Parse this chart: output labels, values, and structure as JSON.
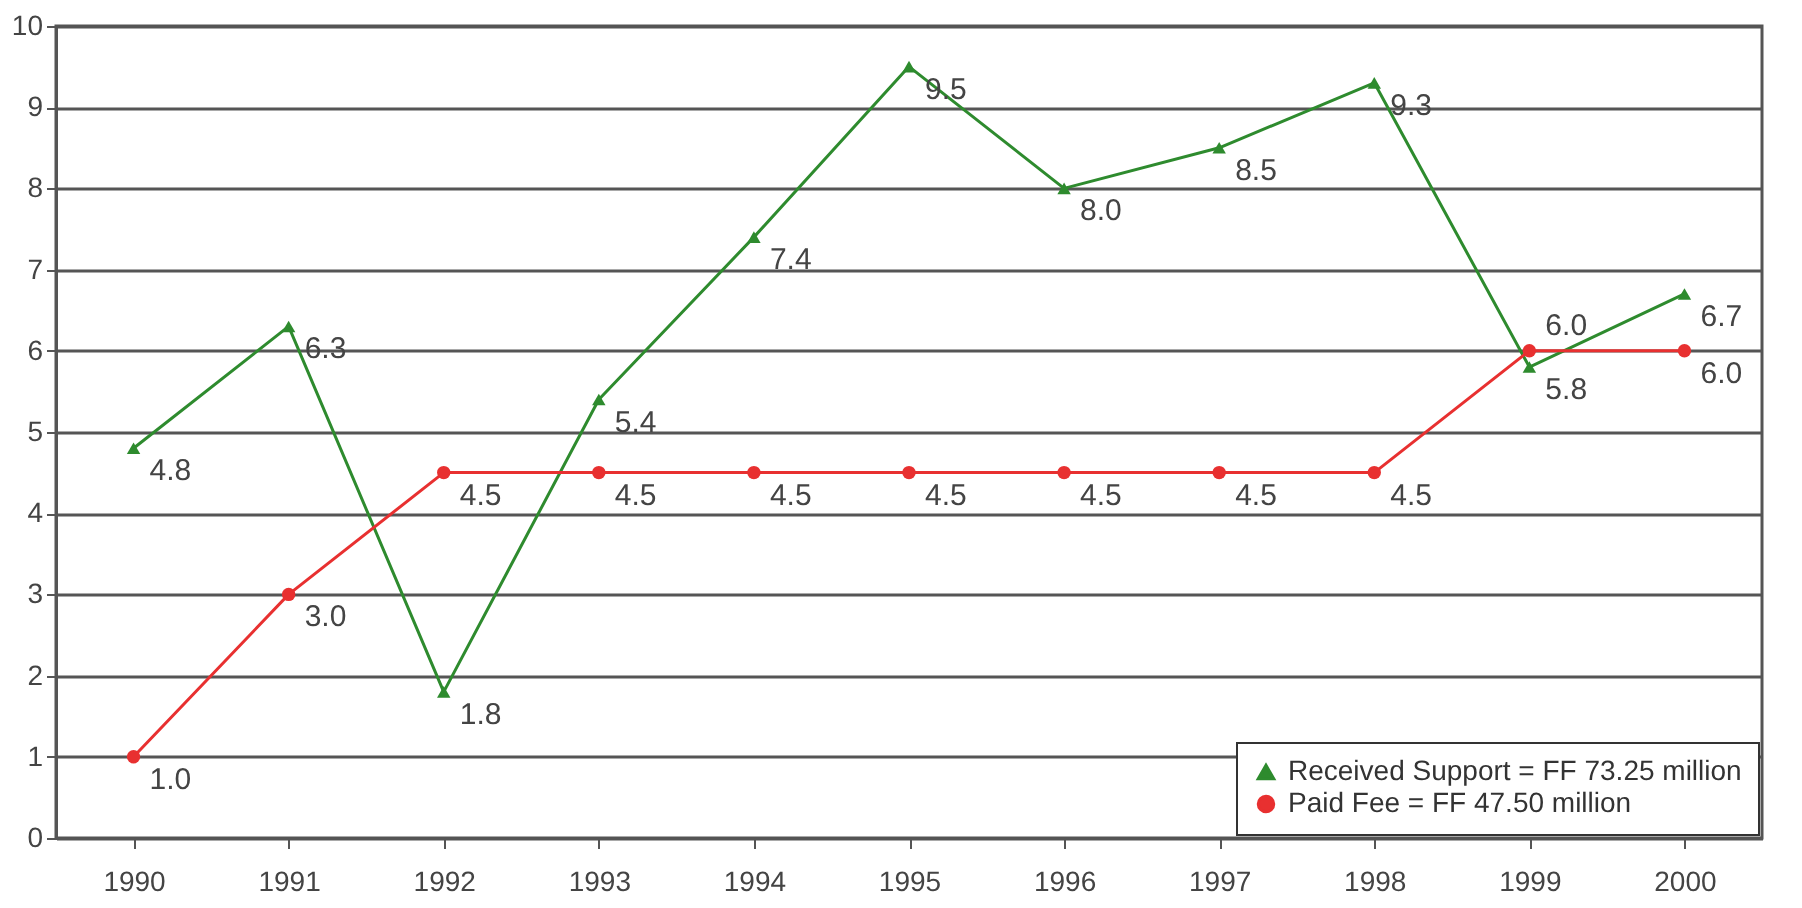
{
  "chart_data": {
    "type": "line",
    "categories": [
      "1990",
      "1991",
      "1992",
      "1993",
      "1994",
      "1995",
      "1996",
      "1997",
      "1998",
      "1999",
      "2000"
    ],
    "series": [
      {
        "name": "Received Support = FF 73.25 million",
        "color": "#2e8b2e",
        "marker": "triangle",
        "values": [
          4.8,
          6.3,
          1.8,
          5.4,
          7.4,
          9.5,
          8.0,
          8.5,
          9.3,
          5.8,
          6.7
        ],
        "value_labels": [
          "4.8",
          "6.3",
          "1.8",
          "5.4",
          "7.4",
          "9.5",
          "8.0",
          "8.5",
          "9.3",
          "5.8",
          "6.7"
        ]
      },
      {
        "name": "Paid Fee = FF 47.50 million",
        "color": "#e83030",
        "marker": "circle",
        "values": [
          1.0,
          3.0,
          4.5,
          4.5,
          4.5,
          4.5,
          4.5,
          4.5,
          4.5,
          6.0,
          6.0
        ],
        "value_labels": [
          "1.0",
          "3.0",
          "4.5",
          "4.5",
          "4.5",
          "4.5",
          "4.5",
          "4.5",
          "4.5",
          "6.0",
          "6.0"
        ]
      }
    ],
    "ylim": [
      0,
      10
    ],
    "yticks": [
      0,
      1,
      2,
      3,
      4,
      5,
      6,
      7,
      8,
      9,
      10
    ],
    "grid": "y",
    "legend": "bottom right",
    "line_style": "solid"
  }
}
